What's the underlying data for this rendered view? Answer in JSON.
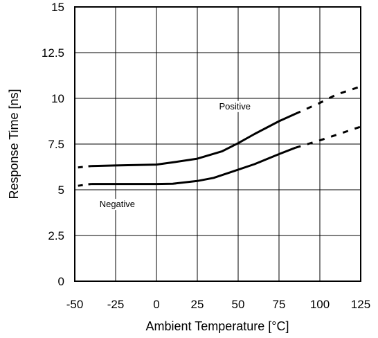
{
  "chart_data": {
    "type": "line",
    "title": "",
    "xlabel": "Ambient Temperature [°C]",
    "ylabel": "Response Time [ns]",
    "xlim": [
      -50,
      125
    ],
    "ylim": [
      0,
      15
    ],
    "x_ticks": [
      "-50",
      "-25",
      "0",
      "25",
      "50",
      "75",
      "100",
      "125"
    ],
    "y_ticks": [
      "0",
      "2.5",
      "5",
      "7.5",
      "10",
      "12.5",
      "15"
    ],
    "grid": true,
    "legend": "none",
    "series": [
      {
        "name": "Positive",
        "solid": [
          [
            -40,
            6.3
          ],
          [
            -25,
            6.33
          ],
          [
            0,
            6.38
          ],
          [
            10,
            6.5
          ],
          [
            25,
            6.7
          ],
          [
            40,
            7.1
          ],
          [
            50,
            7.55
          ],
          [
            60,
            8.05
          ],
          [
            75,
            8.75
          ],
          [
            85,
            9.15
          ]
        ],
        "dashed": [
          [
            -48,
            6.22
          ],
          [
            -40,
            6.3
          ]
        ],
        "dashed_end": [
          [
            85,
            9.15
          ],
          [
            100,
            9.75
          ],
          [
            110,
            10.2
          ],
          [
            125,
            10.65
          ]
        ]
      },
      {
        "name": "Negative",
        "solid": [
          [
            -40,
            5.32
          ],
          [
            -25,
            5.32
          ],
          [
            0,
            5.32
          ],
          [
            10,
            5.33
          ],
          [
            25,
            5.48
          ],
          [
            35,
            5.65
          ],
          [
            45,
            5.95
          ],
          [
            60,
            6.4
          ],
          [
            75,
            6.95
          ],
          [
            85,
            7.3
          ]
        ],
        "dashed": [
          [
            -48,
            5.22
          ],
          [
            -40,
            5.32
          ]
        ],
        "dashed_end": [
          [
            85,
            7.3
          ],
          [
            100,
            7.7
          ],
          [
            110,
            8.0
          ],
          [
            125,
            8.45
          ]
        ]
      }
    ],
    "annotations": [
      {
        "text": "Positive",
        "x": 48,
        "y": 9.4
      },
      {
        "text": "Negative",
        "x": -24,
        "y": 4.05
      }
    ]
  }
}
